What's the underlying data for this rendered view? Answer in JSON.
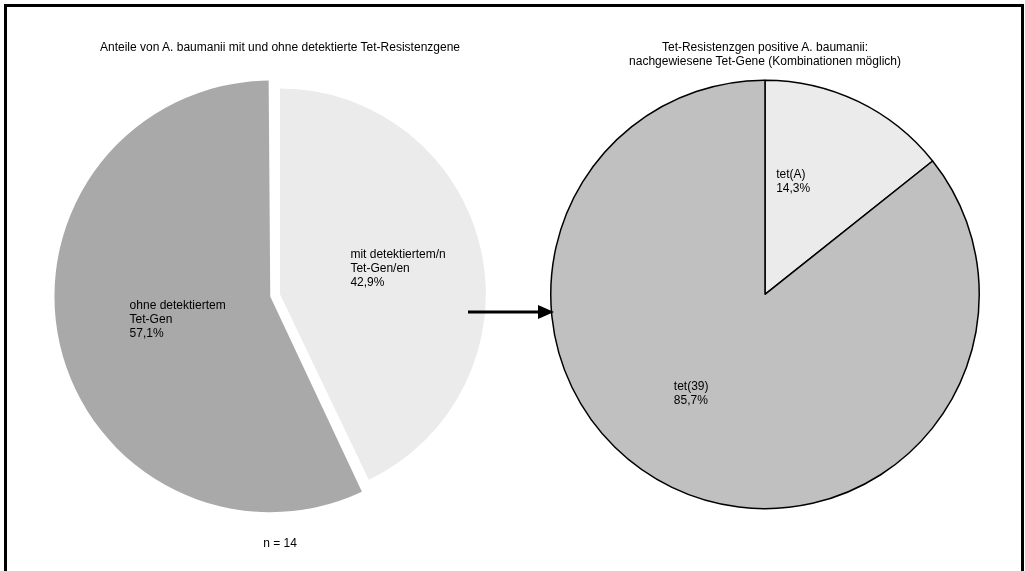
{
  "chart_data": [
    {
      "type": "pie",
      "title": "Anteile von A. baumanii mit und ohne detektierte Tet-Resistenzgene",
      "categories": [
        "mit detektiertem/n Tet-Gen/en",
        "ohne detektiertem Tet-Gen"
      ],
      "values": [
        42.9,
        57.1
      ],
      "colors": [
        "#ebebeb",
        "#a9a9a9"
      ],
      "value_labels": [
        "42,9%",
        "57,1%"
      ],
      "annotations": [
        "n = 14"
      ]
    },
    {
      "type": "pie",
      "title": "Tet-Resistenzgen positive A. baumanii:",
      "subtitle": "nachgewiesene Tet-Gene (Kombinationen möglich)",
      "categories": [
        "tet(A)",
        "tet(39)"
      ],
      "values": [
        14.3,
        85.7
      ],
      "colors": [
        "#ebebeb",
        "#c0c0c0"
      ],
      "value_labels": [
        "14,3%",
        "85,7%"
      ]
    }
  ]
}
